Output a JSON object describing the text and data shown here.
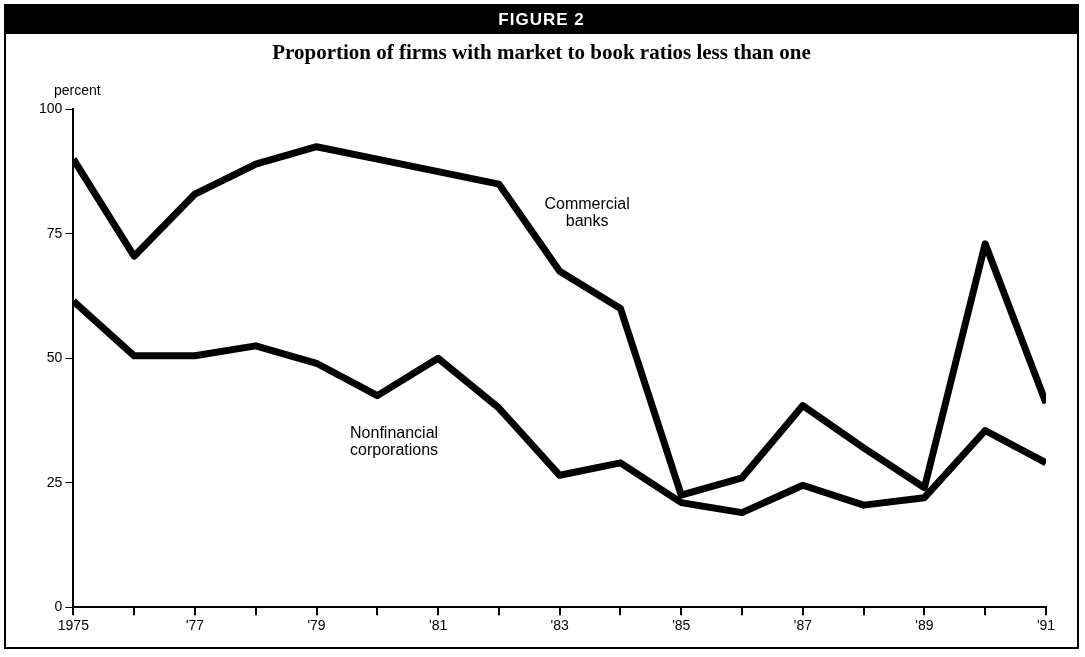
{
  "chart_data": {
    "type": "line",
    "title": "FIGURE 2",
    "subtitle": "Proportion of firms with market to book ratios less than one",
    "ylabel": "percent",
    "x": [
      1975,
      1976,
      1977,
      1978,
      1979,
      1980,
      1981,
      1982,
      1983,
      1984,
      1985,
      1986,
      1987,
      1988,
      1989,
      1990,
      1991
    ],
    "series": [
      {
        "name": "Commercial banks",
        "color": "#000000",
        "values": [
          90,
          70.5,
          83,
          89,
          92.5,
          90,
          87.5,
          85,
          67.5,
          60,
          22.5,
          26,
          40.5,
          32,
          24,
          73,
          41
        ]
      },
      {
        "name": "Nonfinancial corporations",
        "color": "#000000",
        "values": [
          61.5,
          50.5,
          50.5,
          52.5,
          49,
          42.5,
          50,
          40,
          26.5,
          29,
          21,
          19,
          24.5,
          20.5,
          22,
          35.5,
          29
        ]
      }
    ],
    "xlim": [
      1975,
      1991
    ],
    "xticks": [
      1975,
      {
        "value": 1976,
        "label": null
      },
      {
        "value": 1977,
        "label": "'77"
      },
      {
        "value": 1978,
        "label": null
      },
      {
        "value": 1979,
        "label": "'79"
      },
      {
        "value": 1980,
        "label": null
      },
      {
        "value": 1981,
        "label": "'81"
      },
      {
        "value": 1982,
        "label": null
      },
      {
        "value": 1983,
        "label": "'83"
      },
      {
        "value": 1984,
        "label": null
      },
      {
        "value": 1985,
        "label": "'85"
      },
      {
        "value": 1986,
        "label": null
      },
      {
        "value": 1987,
        "label": "'87"
      },
      {
        "value": 1988,
        "label": null
      },
      {
        "value": 1989,
        "label": "'89"
      },
      {
        "value": 1990,
        "label": null
      },
      {
        "value": 1991,
        "label": "'91"
      }
    ],
    "ylim": [
      0,
      100
    ],
    "yticks": [
      0,
      25,
      50,
      75,
      100
    ],
    "grid": false,
    "legend": false,
    "marker": "none",
    "line_style": "solid"
  }
}
